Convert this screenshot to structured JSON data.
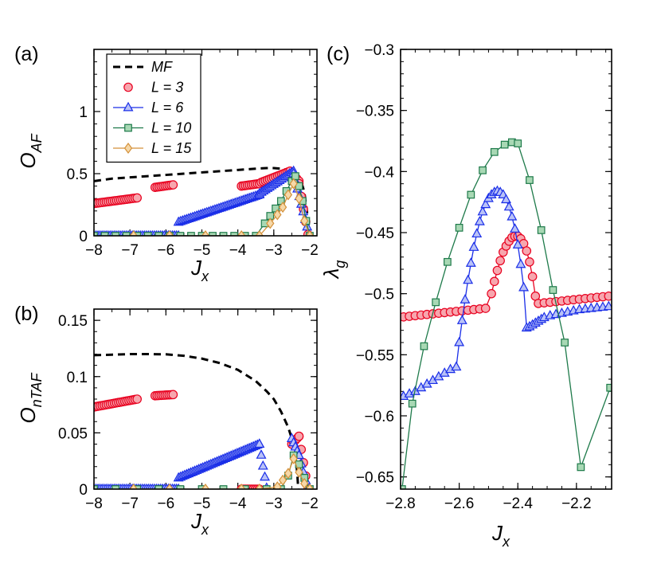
{
  "chart_data": [
    {
      "type": "line",
      "panel_label": "(a)",
      "xlabel": "J",
      "xlabel_sub": "x",
      "ylabel": "O",
      "ylabel_sub": "AF",
      "xlim": [
        -8,
        -1.8
      ],
      "ylim": [
        0,
        1.5
      ],
      "xticks": [
        -8,
        -7,
        -6,
        -5,
        -4,
        -3,
        -2
      ],
      "xtick_labels": [
        "−8",
        "−7",
        "−6",
        "−5",
        "−4",
        "−3",
        "−2"
      ],
      "yticks": [
        0,
        0.5,
        1
      ],
      "ytick_labels": [
        "0",
        "0.5",
        "1"
      ],
      "legend": {
        "position": "top-left",
        "entries": [
          {
            "label": "MF",
            "series": "MF"
          },
          {
            "label": "L = 3",
            "series": "L3"
          },
          {
            "label": "L = 6",
            "series": "L6"
          },
          {
            "label": "L = 10",
            "series": "L10"
          },
          {
            "label": "L = 15",
            "series": "L15"
          }
        ]
      },
      "series": [
        {
          "name": "MF",
          "style": "dashed",
          "color": "#000000",
          "marker": "none",
          "x": [
            -8,
            -7.5,
            -7,
            -6.5,
            -6,
            -5.5,
            -5,
            -4.5,
            -4,
            -3.5,
            -3.2,
            -3.0,
            -2.8,
            -2.6,
            -2.45,
            -2.35,
            -2.25,
            -2.15,
            -2.08,
            -2.02
          ],
          "y": [
            0.44,
            0.46,
            0.47,
            0.48,
            0.49,
            0.5,
            0.51,
            0.52,
            0.53,
            0.54,
            0.545,
            0.545,
            0.54,
            0.53,
            0.52,
            0.5,
            0.45,
            0.35,
            0.2,
            0.05
          ]
        },
        {
          "name": "L3",
          "style": "markers",
          "color": "#e8001f",
          "fill": "#f7a6ae",
          "marker": "circle",
          "segments": [
            {
              "x0": -8,
              "x1": -6.8,
              "y0": 0.26,
              "y1": 0.305
            },
            {
              "x0": -6.3,
              "x1": -5.8,
              "y0": 0.39,
              "y1": 0.41
            },
            {
              "x0": -3.9,
              "x1": -3.4,
              "y0": 0.4,
              "y1": 0.42
            },
            {
              "x0": -3.35,
              "x1": -2.55,
              "y0": 0.43,
              "y1": 0.52
            },
            {
              "x0": -2.55,
              "x1": -2.3,
              "y0": 0.52,
              "y1": 0.44
            },
            {
              "x0": -2.3,
              "x1": -2.05,
              "y0": 0.42,
              "y1": 0.01
            }
          ]
        },
        {
          "name": "L6",
          "style": "markers",
          "color": "#1a2ee8",
          "fill": "#b9c2f7",
          "marker": "triangle",
          "segments": [
            {
              "x0": -8,
              "x1": -5.65,
              "y0": 0.0,
              "y1": 0.0
            },
            {
              "x0": -5.65,
              "x1": -3.4,
              "y0": 0.11,
              "y1": 0.33
            },
            {
              "x0": -3.4,
              "x1": -2.45,
              "y0": 0.34,
              "y1": 0.52
            },
            {
              "x0": -2.45,
              "x1": -2.02,
              "y0": 0.5,
              "y1": 0.01
            }
          ]
        },
        {
          "name": "L10",
          "style": "line-markers",
          "color": "#1e7a4a",
          "fill": "#a8d8b4",
          "marker": "square",
          "x": [
            -8,
            -7.7,
            -7.4,
            -7.1,
            -6.8,
            -6.5,
            -6.2,
            -5.9,
            -5.6,
            -5.3,
            -5.0,
            -4.7,
            -4.4,
            -4.1,
            -3.8,
            -3.5,
            -3.25,
            -3.1,
            -2.95,
            -2.8,
            -2.65,
            -2.5,
            -2.4,
            -2.3,
            -2.2,
            -2.1,
            -2.0
          ],
          "y": [
            0,
            0,
            0,
            0,
            0,
            0,
            0,
            0,
            0,
            0,
            0,
            0,
            0,
            0,
            0,
            0,
            0.1,
            0.16,
            0.22,
            0.28,
            0.36,
            0.44,
            0.48,
            0.4,
            0.28,
            0.12,
            0.0
          ]
        },
        {
          "name": "L15",
          "style": "line-markers",
          "color": "#d4913a",
          "fill": "#f6d8a8",
          "marker": "diamond",
          "x": [
            -6.9,
            -5.9,
            -4.9,
            -3.9,
            -3.4,
            -3.1,
            -2.9,
            -2.75,
            -2.6,
            -2.45,
            -2.3,
            -2.15,
            -2.0
          ],
          "y": [
            0,
            0,
            0,
            0,
            0.0,
            0.1,
            0.17,
            0.23,
            0.33,
            0.42,
            0.3,
            0.12,
            0.0
          ]
        }
      ]
    },
    {
      "type": "line",
      "panel_label": "(b)",
      "xlabel": "J",
      "xlabel_sub": "x",
      "ylabel": "O",
      "ylabel_sub": "nTAF",
      "xlim": [
        -8,
        -1.8
      ],
      "ylim": [
        0,
        0.16
      ],
      "xticks": [
        -8,
        -7,
        -6,
        -5,
        -4,
        -3,
        -2
      ],
      "xtick_labels": [
        "−8",
        "−7",
        "−6",
        "−5",
        "−4",
        "−3",
        "−2"
      ],
      "yticks": [
        0,
        0.05,
        0.1,
        0.15
      ],
      "ytick_labels": [
        "0",
        "0.05",
        "0.1",
        "0.15"
      ],
      "series": [
        {
          "name": "MF",
          "style": "dashed",
          "color": "#000000",
          "marker": "none",
          "x": [
            -8,
            -7.5,
            -7,
            -6.5,
            -6,
            -5.5,
            -5,
            -4.5,
            -4,
            -3.5,
            -3.2,
            -3.0,
            -2.8,
            -2.6,
            -2.5,
            -2.4,
            -2.35,
            -2.32
          ],
          "y": [
            0.119,
            0.1195,
            0.12,
            0.12,
            0.1198,
            0.1185,
            0.116,
            0.112,
            0.106,
            0.096,
            0.087,
            0.08,
            0.069,
            0.055,
            0.045,
            0.03,
            0.015,
            0.0
          ]
        },
        {
          "name": "L3",
          "style": "markers",
          "color": "#e8001f",
          "fill": "#f7a6ae",
          "marker": "circle",
          "segments": [
            {
              "x0": -8,
              "x1": -6.8,
              "y0": 0.073,
              "y1": 0.08
            },
            {
              "x0": -6.3,
              "x1": -5.8,
              "y0": 0.083,
              "y1": 0.084
            },
            {
              "x0": -3.9,
              "x1": -3.4,
              "y0": 0.0,
              "y1": 0.0
            },
            {
              "x0": -2.5,
              "x1": -2.3,
              "y0": 0.04,
              "y1": 0.047
            },
            {
              "x0": -2.3,
              "x1": -2.05,
              "y0": 0.047,
              "y1": 0.0
            }
          ]
        },
        {
          "name": "L6",
          "style": "markers",
          "color": "#1a2ee8",
          "fill": "#b9c2f7",
          "marker": "triangle",
          "segments": [
            {
              "x0": -8,
              "x1": -5.65,
              "y0": 0.0,
              "y1": 0.0
            },
            {
              "x0": -5.65,
              "x1": -3.4,
              "y0": 0.01,
              "y1": 0.04
            },
            {
              "x0": -3.4,
              "x1": -3.2,
              "y0": 0.04,
              "y1": 0.001
            },
            {
              "x0": -2.5,
              "x1": -2.3,
              "y0": 0.045,
              "y1": 0.03
            },
            {
              "x0": -2.3,
              "x1": -2.05,
              "y0": 0.03,
              "y1": 0.0
            }
          ]
        },
        {
          "name": "L10",
          "style": "line-markers",
          "color": "#1e7a4a",
          "fill": "#a8d8b4",
          "marker": "square",
          "x": [
            -8,
            -7.4,
            -6.8,
            -6.2,
            -5.6,
            -5.0,
            -4.4,
            -3.8,
            -3.2,
            -2.8,
            -2.6,
            -2.45,
            -2.3,
            -2.15,
            -2.0
          ],
          "y": [
            0,
            0,
            0,
            0,
            0,
            0,
            0,
            0,
            0,
            0.0,
            0.012,
            0.03,
            0.022,
            0.01,
            0.0
          ]
        },
        {
          "name": "L15",
          "style": "line-markers",
          "color": "#d4913a",
          "fill": "#f6d8a8",
          "marker": "diamond",
          "x": [
            -6.9,
            -5.9,
            -4.9,
            -3.9,
            -3.4,
            -2.9,
            -2.75,
            -2.6,
            -2.45,
            -2.3,
            -2.15,
            -2.0
          ],
          "y": [
            0,
            0,
            0,
            0,
            0,
            0.002,
            0.008,
            0.014,
            0.027,
            0.015,
            0.005,
            0.0
          ]
        }
      ]
    },
    {
      "type": "line",
      "panel_label": "(c)",
      "xlabel": "J",
      "xlabel_sub": "x",
      "ylabel": "λ",
      "ylabel_sub": "g",
      "xlim": [
        -2.8,
        -2.08
      ],
      "ylim": [
        -0.66,
        -0.3
      ],
      "xticks": [
        -2.8,
        -2.6,
        -2.4,
        -2.2
      ],
      "xtick_labels": [
        "−2.8",
        "−2.6",
        "−2.4",
        "−2.2"
      ],
      "yticks": [
        -0.3,
        -0.35,
        -0.4,
        -0.45,
        -0.5,
        -0.55,
        -0.6,
        -0.65
      ],
      "ytick_labels": [
        "−0.3",
        "−0.35",
        "−0.4",
        "−0.45",
        "−0.5",
        "−0.55",
        "−0.6",
        "−0.65"
      ],
      "series": [
        {
          "name": "L3",
          "style": "line-markers",
          "color": "#e8001f",
          "fill": "#f7a6ae",
          "marker": "circle",
          "x": [
            -2.79,
            -2.77,
            -2.75,
            -2.73,
            -2.71,
            -2.69,
            -2.67,
            -2.65,
            -2.63,
            -2.61,
            -2.59,
            -2.57,
            -2.55,
            -2.53,
            -2.51,
            -2.49,
            -2.48,
            -2.47,
            -2.46,
            -2.45,
            -2.44,
            -2.43,
            -2.42,
            -2.41,
            -2.4,
            -2.39,
            -2.38,
            -2.37,
            -2.36,
            -2.35,
            -2.34,
            -2.33,
            -2.31,
            -2.29,
            -2.27,
            -2.25,
            -2.23,
            -2.21,
            -2.19,
            -2.17,
            -2.15,
            -2.13,
            -2.11,
            -2.09
          ],
          "y": [
            -0.519,
            -0.5185,
            -0.518,
            -0.5175,
            -0.517,
            -0.5165,
            -0.516,
            -0.5155,
            -0.515,
            -0.5145,
            -0.514,
            -0.5135,
            -0.513,
            -0.5125,
            -0.512,
            -0.5,
            -0.49,
            -0.481,
            -0.473,
            -0.466,
            -0.461,
            -0.457,
            -0.454,
            -0.453,
            -0.453,
            -0.455,
            -0.459,
            -0.465,
            -0.474,
            -0.486,
            -0.502,
            -0.508,
            -0.5075,
            -0.507,
            -0.5065,
            -0.506,
            -0.5055,
            -0.505,
            -0.5045,
            -0.504,
            -0.5035,
            -0.503,
            -0.5025,
            -0.502
          ]
        },
        {
          "name": "L6",
          "style": "line-markers",
          "color": "#1a2ee8",
          "fill": "#b9c2f7",
          "marker": "triangle",
          "x": [
            -2.79,
            -2.77,
            -2.75,
            -2.73,
            -2.71,
            -2.69,
            -2.67,
            -2.65,
            -2.63,
            -2.61,
            -2.6,
            -2.59,
            -2.58,
            -2.57,
            -2.56,
            -2.55,
            -2.54,
            -2.53,
            -2.52,
            -2.51,
            -2.5,
            -2.49,
            -2.48,
            -2.47,
            -2.46,
            -2.45,
            -2.44,
            -2.43,
            -2.42,
            -2.41,
            -2.4,
            -2.39,
            -2.38,
            -2.37,
            -2.36,
            -2.35,
            -2.34,
            -2.33,
            -2.32,
            -2.31,
            -2.29,
            -2.27,
            -2.25,
            -2.23,
            -2.21,
            -2.19,
            -2.17,
            -2.15,
            -2.13,
            -2.11,
            -2.09
          ],
          "y": [
            -0.584,
            -0.582,
            -0.58,
            -0.577,
            -0.574,
            -0.571,
            -0.568,
            -0.565,
            -0.562,
            -0.56,
            -0.54,
            -0.522,
            -0.505,
            -0.489,
            -0.475,
            -0.462,
            -0.451,
            -0.441,
            -0.433,
            -0.427,
            -0.422,
            -0.419,
            -0.417,
            -0.416,
            -0.417,
            -0.419,
            -0.423,
            -0.429,
            -0.437,
            -0.447,
            -0.46,
            -0.476,
            -0.495,
            -0.528,
            -0.527,
            -0.5255,
            -0.524,
            -0.5225,
            -0.521,
            -0.5195,
            -0.518,
            -0.517,
            -0.516,
            -0.515,
            -0.514,
            -0.513,
            -0.5125,
            -0.512,
            -0.5115,
            -0.511,
            -0.5105
          ]
        },
        {
          "name": "L10",
          "style": "line-markers",
          "color": "#1e7a4a",
          "fill": "#a8d8b4",
          "marker": "square",
          "x": [
            -2.795,
            -2.76,
            -2.72,
            -2.68,
            -2.64,
            -2.6,
            -2.56,
            -2.52,
            -2.48,
            -2.445,
            -2.42,
            -2.4,
            -2.36,
            -2.32,
            -2.28,
            -2.24,
            -2.185,
            -2.085
          ],
          "y": [
            -0.66,
            -0.59,
            -0.543,
            -0.507,
            -0.474,
            -0.446,
            -0.419,
            -0.399,
            -0.384,
            -0.378,
            -0.376,
            -0.377,
            -0.407,
            -0.448,
            -0.497,
            -0.54,
            -0.642,
            -0.577
          ]
        }
      ]
    }
  ]
}
